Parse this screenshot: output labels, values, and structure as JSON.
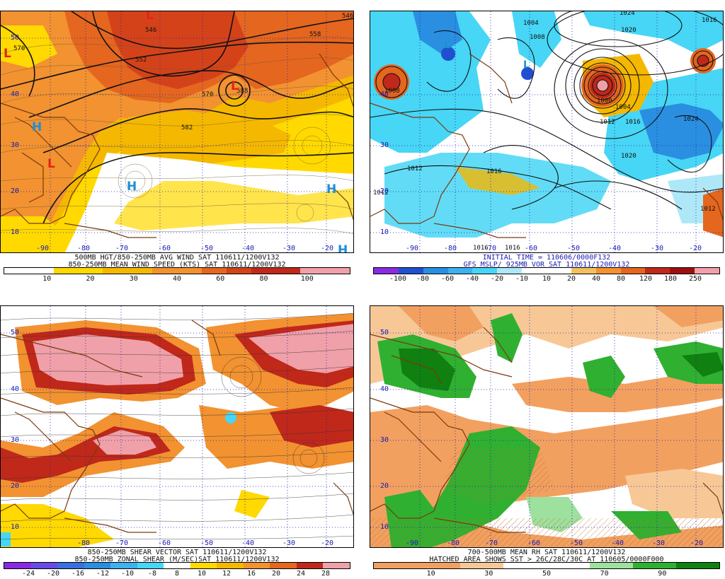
{
  "panels": [
    {
      "id": "p1",
      "caption1": "500MB HGT/850-250MB AVG WIND SAT 110611/1200V132",
      "caption2": "850-250MB MEAN WIND SPEED (KTS) SAT 110611/1200V132",
      "colorbar": {
        "colors": [
          "#ffffff",
          "#ffffff",
          "#ffd900",
          "#ffd900",
          "#f5b800",
          "#f5b800",
          "#f29230",
          "#f29230",
          "#e5661f",
          "#d4421a",
          "#c0281a",
          "#c0281a",
          "#f0a0a8",
          "#f0a0a8"
        ],
        "ticks": [
          "10",
          "20",
          "30",
          "40",
          "60",
          "80",
          "100"
        ]
      },
      "lat_labels": [
        "50",
        "40",
        "30",
        "20",
        "10"
      ],
      "lon_labels": [
        "-90",
        "-80",
        "-70",
        "-60",
        "-50",
        "-40",
        "-30",
        "-20"
      ],
      "contour_labels": [
        "546",
        "570",
        "558",
        "552",
        "570",
        "588",
        "582",
        "546"
      ],
      "symbols": [
        {
          "t": "L",
          "c": "red"
        },
        {
          "t": "L",
          "c": "red"
        },
        {
          "t": "L",
          "c": "red"
        },
        {
          "t": "L",
          "c": "red"
        },
        {
          "t": "H",
          "c": "blue"
        },
        {
          "t": "H",
          "c": "blue"
        },
        {
          "t": "H",
          "c": "blue"
        },
        {
          "t": "H",
          "c": "blue"
        }
      ]
    },
    {
      "id": "p2",
      "caption1": "INITIAL TIME = 110606/0000F132",
      "caption2": "GFS MSLP/ 925MB VOR SAT 110611/1200V132",
      "colorbar": {
        "colors": [
          "#8a2be2",
          "#2050d0",
          "#2a8fe0",
          "#3fb0f0",
          "#47d6f5",
          "#aee8f8",
          "#ffffff",
          "#ffffff",
          "#f2c060",
          "#f29230",
          "#e5661f",
          "#c0281a",
          "#9c1010",
          "#f0a0a8"
        ],
        "ticks": [
          "-100",
          "-80",
          "-60",
          "-40",
          "-20",
          "-10",
          "10",
          "20",
          "40",
          "80",
          "120",
          "180",
          "250"
        ]
      },
      "lat_labels": [
        "40",
        "30",
        "20",
        "10"
      ],
      "lon_labels": [
        "-90",
        "-80",
        "-70",
        "-60",
        "-50",
        "-40",
        "-30",
        "-20"
      ],
      "contour_labels": [
        "1024",
        "1020",
        "1016",
        "1004",
        "1008",
        "1008",
        "1000",
        "1004",
        "1012",
        "1016",
        "1012",
        "1020",
        "1024",
        "1012",
        "1016",
        "1016",
        "1012",
        "1016"
      ],
      "symbols": [
        {
          "t": "L",
          "c": "blue"
        },
        {
          "t": "L",
          "c": "blue"
        }
      ]
    },
    {
      "id": "p3",
      "caption1": "850-250MB SHEAR VECTOR SAT 110611/1200V132",
      "caption2": "850-250MB ZONAL SHEAR (M/SEC)SAT 110611/1200V132",
      "colorbar": {
        "colors": [
          "#8a2be2",
          "#6a4be8",
          "#3a6fe0",
          "#2a8fe0",
          "#3fb0f0",
          "#47d6f5",
          "#ffffff",
          "#ffd900",
          "#f5b800",
          "#f29230",
          "#e5661f",
          "#c0281a",
          "#f0a0a8"
        ],
        "ticks": [
          "-24",
          "-20",
          "-16",
          "-12",
          "-10",
          "-8",
          "8",
          "10",
          "12",
          "16",
          "20",
          "24",
          "28"
        ]
      },
      "lat_labels": [
        "50",
        "40",
        "30",
        "20",
        "10"
      ],
      "lon_labels": [
        "-80",
        "-70",
        "-60",
        "-50",
        "-40",
        "-30",
        "-20"
      ]
    },
    {
      "id": "p4",
      "caption1": "700-500MB MEAN RH SAT 110611/1200V132",
      "caption2": "HATCHED AREA SHOWS SST > 26C/28C/30C AT 110605/0000F000",
      "colorbar": {
        "colors": [
          "#f2a060",
          "#f2a060",
          "#f7c896",
          "#ffffff",
          "#ffffff",
          "#9ee09e",
          "#30b030",
          "#108010"
        ],
        "ticks": [
          "10",
          "30",
          "50",
          "70",
          "90"
        ]
      },
      "lat_labels": [
        "50",
        "40",
        "30",
        "20",
        "10"
      ],
      "lon_labels": [
        "-90",
        "-80",
        "-70",
        "-60",
        "-50",
        "-40",
        "-30",
        "-20"
      ]
    }
  ]
}
